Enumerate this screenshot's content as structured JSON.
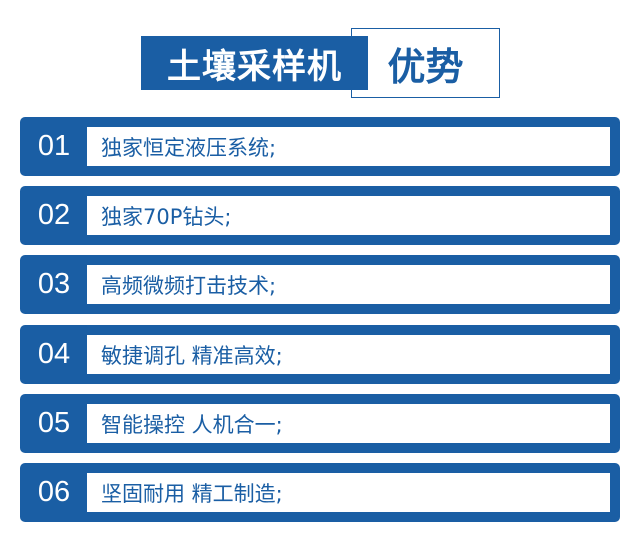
{
  "header": {
    "title_main": "土壤采样机",
    "title_accent": "优势"
  },
  "colors": {
    "brand_blue": "#1a5ea4",
    "background": "#ffffff"
  },
  "items": [
    {
      "num": "01",
      "text": "独家恒定液压系统;"
    },
    {
      "num": "02",
      "text": "独家70P钻头;"
    },
    {
      "num": "03",
      "text": "高频微频打击技术;"
    },
    {
      "num": "04",
      "text": "敏捷调孔 精准高效;"
    },
    {
      "num": "05",
      "text": "智能操控 人机合一;"
    },
    {
      "num": "06",
      "text": "坚固耐用 精工制造;"
    }
  ]
}
